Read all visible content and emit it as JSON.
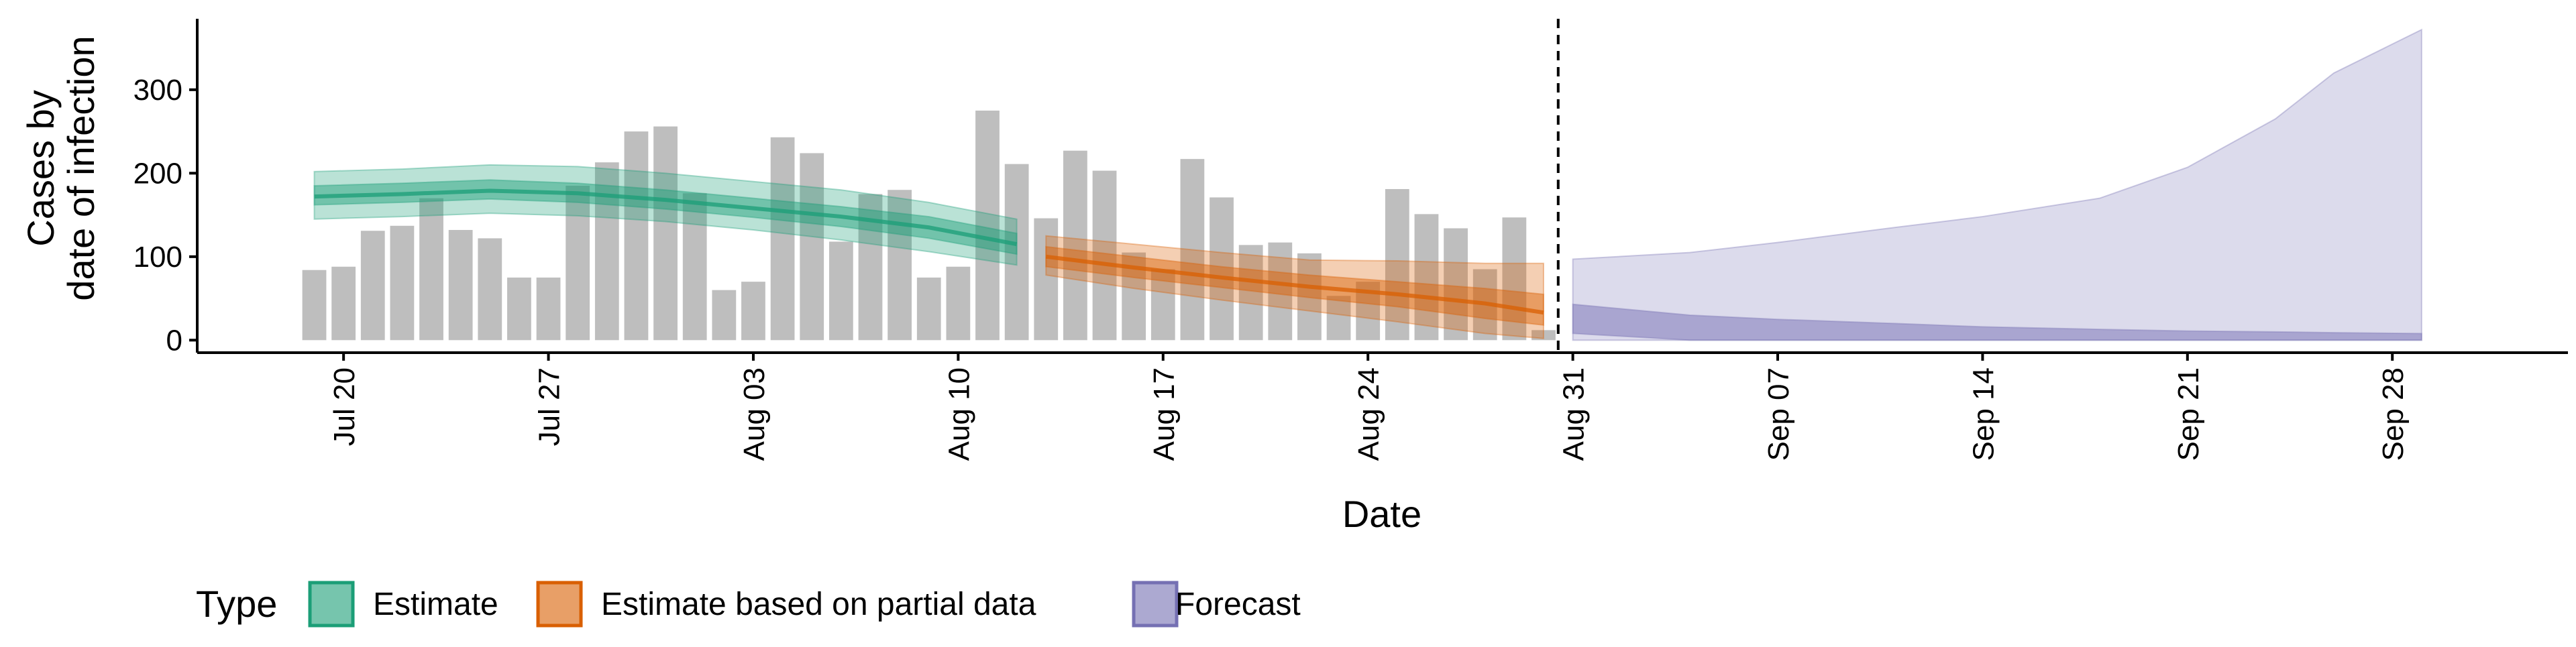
{
  "chart_data": {
    "type": "bar",
    "xlabel": "Date",
    "ylabel_lines": [
      "Cases by",
      "date of infection"
    ],
    "ylim": [
      -15,
      385
    ],
    "y_ticks": [
      0,
      100,
      200,
      300
    ],
    "x_range": [
      "2020-07-15",
      "2020-10-04"
    ],
    "x_ticks": [
      {
        "date": "2020-07-20",
        "label": "Jul 20"
      },
      {
        "date": "2020-07-27",
        "label": "Jul 27"
      },
      {
        "date": "2020-08-03",
        "label": "Aug 03"
      },
      {
        "date": "2020-08-10",
        "label": "Aug 10"
      },
      {
        "date": "2020-08-17",
        "label": "Aug 17"
      },
      {
        "date": "2020-08-24",
        "label": "Aug 24"
      },
      {
        "date": "2020-08-31",
        "label": "Aug 31"
      },
      {
        "date": "2020-09-07",
        "label": "Sep 07"
      },
      {
        "date": "2020-09-14",
        "label": "Sep 14"
      },
      {
        "date": "2020-09-21",
        "label": "Sep 21"
      },
      {
        "date": "2020-09-28",
        "label": "Sep 28"
      }
    ],
    "vline_date": "2020-08-30",
    "bars": {
      "dates": [
        "2020-07-19",
        "2020-07-20",
        "2020-07-21",
        "2020-07-22",
        "2020-07-23",
        "2020-07-24",
        "2020-07-25",
        "2020-07-26",
        "2020-07-27",
        "2020-07-28",
        "2020-07-29",
        "2020-07-30",
        "2020-07-31",
        "2020-08-01",
        "2020-08-02",
        "2020-08-03",
        "2020-08-04",
        "2020-08-05",
        "2020-08-06",
        "2020-08-07",
        "2020-08-08",
        "2020-08-09",
        "2020-08-10",
        "2020-08-11",
        "2020-08-12",
        "2020-08-13",
        "2020-08-14",
        "2020-08-15",
        "2020-08-16",
        "2020-08-17",
        "2020-08-18",
        "2020-08-19",
        "2020-08-20",
        "2020-08-21",
        "2020-08-22",
        "2020-08-23",
        "2020-08-24",
        "2020-08-25",
        "2020-08-26",
        "2020-08-27",
        "2020-08-28",
        "2020-08-29",
        "2020-08-30"
      ],
      "values": [
        84,
        88,
        131,
        137,
        170,
        132,
        122,
        75,
        75,
        185,
        213,
        250,
        256,
        176,
        60,
        70,
        243,
        224,
        118,
        175,
        180,
        75,
        88,
        275,
        211,
        146,
        227,
        203,
        105,
        85,
        217,
        171,
        114,
        117,
        104,
        53,
        70,
        181,
        151,
        134,
        85,
        147,
        12
      ],
      "color": "#bebebe"
    },
    "estimate": {
      "name": "Estimate",
      "color": "#1b9e77",
      "dates": [
        "2020-07-19",
        "2020-07-22",
        "2020-07-25",
        "2020-07-28",
        "2020-07-31",
        "2020-08-03",
        "2020-08-06",
        "2020-08-09",
        "2020-08-12"
      ],
      "median": [
        172,
        175,
        179,
        176,
        168,
        158,
        148,
        135,
        115
      ],
      "lower50": [
        162,
        165,
        169,
        165,
        157,
        147,
        136,
        122,
        103
      ],
      "upper50": [
        185,
        188,
        192,
        188,
        180,
        170,
        160,
        148,
        128
      ],
      "lower90": [
        145,
        148,
        152,
        149,
        142,
        132,
        120,
        106,
        90
      ],
      "upper90": [
        202,
        205,
        210,
        208,
        200,
        190,
        180,
        165,
        145
      ]
    },
    "partial": {
      "name": "Estimate based on partial data",
      "color": "#d95f02",
      "dates": [
        "2020-08-13",
        "2020-08-16",
        "2020-08-19",
        "2020-08-22",
        "2020-08-25",
        "2020-08-28",
        "2020-08-30"
      ],
      "median": [
        100,
        87,
        75,
        64,
        55,
        44,
        33
      ],
      "lower50": [
        88,
        75,
        63,
        51,
        40,
        26,
        18
      ],
      "upper50": [
        112,
        100,
        88,
        78,
        70,
        62,
        55
      ],
      "lower90": [
        78,
        62,
        48,
        35,
        22,
        8,
        2
      ],
      "upper90": [
        125,
        115,
        105,
        96,
        95,
        92,
        92
      ]
    },
    "forecast": {
      "name": "Forecast",
      "color": "#7570b3",
      "dates": [
        "2020-08-31",
        "2020-09-04",
        "2020-09-07",
        "2020-09-11",
        "2020-09-14",
        "2020-09-18",
        "2020-09-21",
        "2020-09-24",
        "2020-09-26",
        "2020-09-29"
      ],
      "lower90": [
        0,
        0,
        0,
        0,
        0,
        0,
        0,
        0,
        0,
        0
      ],
      "upper90": [
        97,
        105,
        117,
        135,
        148,
        170,
        207,
        265,
        320,
        372
      ],
      "lower50": [
        8,
        0,
        0,
        0,
        0,
        0,
        0,
        0,
        0,
        0
      ],
      "upper50": [
        43,
        30,
        25,
        20,
        16,
        13,
        11,
        10,
        9,
        8
      ]
    },
    "legend": {
      "title": "Type",
      "position": "bottom-left",
      "items": [
        {
          "label": "Estimate",
          "color": "#1b9e77"
        },
        {
          "label": "Estimate based on partial data",
          "color": "#d95f02"
        },
        {
          "label": "Forecast",
          "color": "#7570b3"
        }
      ]
    },
    "grid": false
  }
}
